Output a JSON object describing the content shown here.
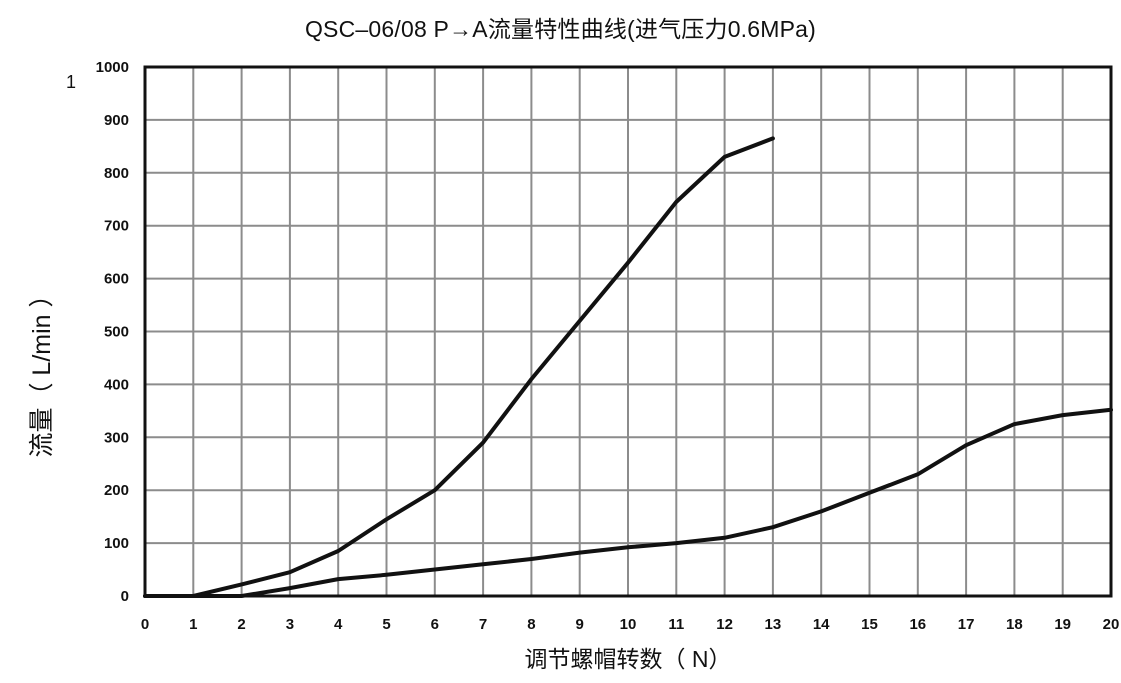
{
  "chart_data": {
    "type": "line",
    "title": "QSC–06/08  P→A流量特性曲线(进气压力0.6MPa)",
    "xlabel": "调节螺帽转数（ N）",
    "ylabel": "流量（ L/min ）",
    "stray_text": "1",
    "xlim": [
      0,
      20
    ],
    "ylim": [
      0,
      1000
    ],
    "grid": true,
    "x_ticks": [
      "0",
      "1",
      "2",
      "3",
      "4",
      "5",
      "6",
      "7",
      "8",
      "9",
      "10",
      "11",
      "12",
      "13",
      "14",
      "15",
      "16",
      "17",
      "18",
      "19",
      "20"
    ],
    "y_ticks": [
      "0",
      "100",
      "200",
      "300",
      "400",
      "500",
      "600",
      "700",
      "800",
      "900",
      "1000"
    ],
    "series": [
      {
        "points": [
          [
            0,
            0
          ],
          [
            1,
            0
          ],
          [
            2,
            22
          ],
          [
            3,
            45
          ],
          [
            4,
            85
          ],
          [
            5,
            145
          ],
          [
            6,
            200
          ],
          [
            7,
            290
          ],
          [
            8,
            410
          ],
          [
            9,
            520
          ],
          [
            10,
            630
          ],
          [
            11,
            745
          ],
          [
            12,
            830
          ],
          [
            13,
            865
          ]
        ]
      },
      {
        "points": [
          [
            0,
            0
          ],
          [
            2,
            0
          ],
          [
            3,
            15
          ],
          [
            4,
            32
          ],
          [
            5,
            40
          ],
          [
            6,
            50
          ],
          [
            7,
            60
          ],
          [
            8,
            70
          ],
          [
            9,
            82
          ],
          [
            10,
            92
          ],
          [
            11,
            100
          ],
          [
            12,
            110
          ],
          [
            13,
            130
          ],
          [
            14,
            160
          ],
          [
            15,
            195
          ],
          [
            16,
            230
          ],
          [
            17,
            285
          ],
          [
            18,
            325
          ],
          [
            19,
            342
          ],
          [
            20,
            352
          ]
        ]
      }
    ]
  }
}
